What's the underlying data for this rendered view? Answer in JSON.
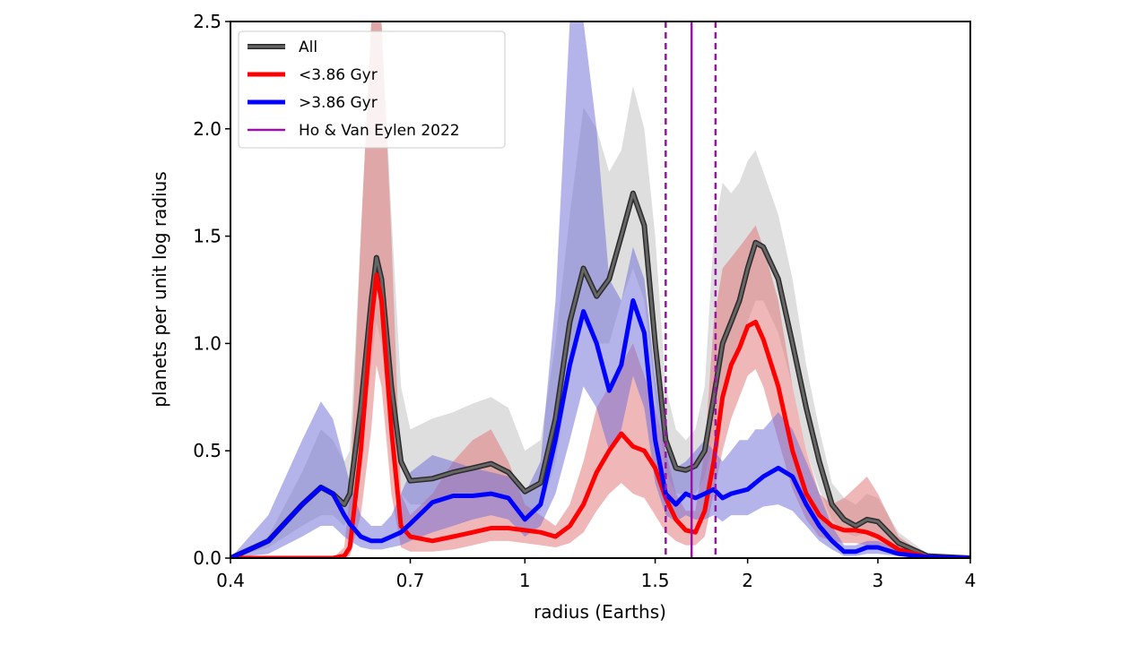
{
  "chart_data": {
    "type": "line",
    "xlabel": "radius (Earths)",
    "ylabel": "planets per unit log radius",
    "xscale": "log",
    "xlim": [
      0.4,
      4
    ],
    "ylim": [
      0,
      2.5
    ],
    "xticks": [
      0.4,
      0.7,
      1,
      1.5,
      2,
      3,
      4
    ],
    "yticks": [
      {
        "value": 0,
        "label": "0.0"
      },
      0.5,
      {
        "value": 1,
        "label": "1.0"
      },
      1.5,
      {
        "value": 2,
        "label": "2.0"
      },
      2.5
    ],
    "legend": "upper left",
    "x": [
      0.4,
      0.45,
      0.5,
      0.53,
      0.55,
      0.57,
      0.58,
      0.6,
      0.62,
      0.63,
      0.64,
      0.66,
      0.68,
      0.7,
      0.75,
      0.8,
      0.85,
      0.9,
      0.95,
      1.0,
      1.05,
      1.1,
      1.15,
      1.2,
      1.25,
      1.3,
      1.35,
      1.4,
      1.45,
      1.5,
      1.55,
      1.6,
      1.65,
      1.7,
      1.75,
      1.8,
      1.85,
      1.9,
      1.95,
      2.0,
      2.05,
      2.1,
      2.2,
      2.3,
      2.4,
      2.5,
      2.6,
      2.7,
      2.8,
      2.9,
      3.0,
      3.2,
      3.5,
      4.0
    ],
    "series": [
      {
        "name": "All",
        "color": "#454545",
        "band_color": "#c8c8c8",
        "values": [
          0,
          0.08,
          0.25,
          0.33,
          0.3,
          0.25,
          0.3,
          0.7,
          1.2,
          1.4,
          1.3,
          0.8,
          0.45,
          0.36,
          0.37,
          0.4,
          0.42,
          0.44,
          0.4,
          0.31,
          0.35,
          0.65,
          1.1,
          1.35,
          1.22,
          1.3,
          1.5,
          1.7,
          1.55,
          1.0,
          0.55,
          0.42,
          0.41,
          0.43,
          0.5,
          0.75,
          1.0,
          1.1,
          1.2,
          1.35,
          1.47,
          1.45,
          1.3,
          1.0,
          0.7,
          0.45,
          0.25,
          0.18,
          0.15,
          0.18,
          0.17,
          0.07,
          0.01,
          0
        ],
        "upper": [
          0,
          0.1,
          0.4,
          0.6,
          0.55,
          0.45,
          0.5,
          1.5,
          2.5,
          2.5,
          2.5,
          1.6,
          0.8,
          0.6,
          0.65,
          0.68,
          0.72,
          0.75,
          0.7,
          0.5,
          0.55,
          1.0,
          1.6,
          2.1,
          2.0,
          1.8,
          1.9,
          2.2,
          2.0,
          1.5,
          0.8,
          0.6,
          0.55,
          0.6,
          0.8,
          1.5,
          1.75,
          1.7,
          1.75,
          1.85,
          1.9,
          1.8,
          1.6,
          1.3,
          0.9,
          0.6,
          0.35,
          0.28,
          0.25,
          0.3,
          0.28,
          0.12,
          0.02,
          0
        ],
        "lower": [
          0,
          0.05,
          0.15,
          0.2,
          0.2,
          0.15,
          0.2,
          0.45,
          0.9,
          1.1,
          1.0,
          0.55,
          0.3,
          0.25,
          0.25,
          0.28,
          0.3,
          0.3,
          0.28,
          0.2,
          0.22,
          0.45,
          0.85,
          1.1,
          1.0,
          1.0,
          1.2,
          1.35,
          1.2,
          0.75,
          0.4,
          0.3,
          0.3,
          0.3,
          0.38,
          0.55,
          0.8,
          0.9,
          1.0,
          1.1,
          1.2,
          1.2,
          1.05,
          0.8,
          0.5,
          0.32,
          0.18,
          0.12,
          0.1,
          0.12,
          0.1,
          0.04,
          0.005,
          0
        ]
      },
      {
        "name": "<3.86 Gyr",
        "color": "#ff0000",
        "band_color": "#e07070",
        "values": [
          0,
          0,
          0,
          0,
          0,
          0.01,
          0.05,
          0.5,
          1.1,
          1.32,
          1.2,
          0.6,
          0.15,
          0.1,
          0.08,
          0.1,
          0.12,
          0.14,
          0.14,
          0.13,
          0.12,
          0.1,
          0.15,
          0.25,
          0.4,
          0.5,
          0.58,
          0.52,
          0.5,
          0.42,
          0.28,
          0.18,
          0.13,
          0.12,
          0.22,
          0.45,
          0.75,
          0.9,
          0.98,
          1.08,
          1.1,
          1.02,
          0.8,
          0.5,
          0.3,
          0.2,
          0.15,
          0.13,
          0.13,
          0.12,
          0.1,
          0.04,
          0.005,
          0
        ],
        "upper": [
          0,
          0,
          0,
          0,
          0,
          0.05,
          0.3,
          1.5,
          2.5,
          2.5,
          2.5,
          1.5,
          0.3,
          0.2,
          0.3,
          0.45,
          0.55,
          0.6,
          0.45,
          0.25,
          0.2,
          0.15,
          0.25,
          0.45,
          0.7,
          0.8,
          0.9,
          1.0,
          0.85,
          0.7,
          0.5,
          0.3,
          0.22,
          0.22,
          0.5,
          1.1,
          1.35,
          1.4,
          1.45,
          1.5,
          1.55,
          1.45,
          1.2,
          0.8,
          0.5,
          0.3,
          0.25,
          0.28,
          0.33,
          0.38,
          0.3,
          0.1,
          0.01,
          0
        ],
        "lower": [
          0,
          0,
          0,
          0,
          0,
          0,
          0.01,
          0.2,
          0.6,
          0.9,
          0.8,
          0.3,
          0.05,
          0.03,
          0.03,
          0.04,
          0.06,
          0.08,
          0.08,
          0.07,
          0.06,
          0.05,
          0.07,
          0.12,
          0.22,
          0.3,
          0.35,
          0.3,
          0.28,
          0.2,
          0.12,
          0.08,
          0.06,
          0.06,
          0.1,
          0.3,
          0.5,
          0.65,
          0.75,
          0.85,
          0.88,
          0.8,
          0.55,
          0.32,
          0.18,
          0.1,
          0.08,
          0.07,
          0.07,
          0.06,
          0.05,
          0.02,
          0,
          0
        ]
      },
      {
        "name": ">3.86 Gyr",
        "color": "#0000ff",
        "band_color": "#6a6ad8",
        "values": [
          0,
          0.08,
          0.25,
          0.33,
          0.3,
          0.2,
          0.16,
          0.1,
          0.08,
          0.08,
          0.08,
          0.1,
          0.12,
          0.16,
          0.26,
          0.29,
          0.29,
          0.3,
          0.28,
          0.18,
          0.25,
          0.55,
          0.9,
          1.15,
          1.0,
          0.78,
          0.9,
          1.2,
          1.05,
          0.55,
          0.3,
          0.25,
          0.3,
          0.28,
          0.3,
          0.32,
          0.28,
          0.3,
          0.31,
          0.32,
          0.35,
          0.38,
          0.42,
          0.38,
          0.25,
          0.15,
          0.08,
          0.03,
          0.03,
          0.05,
          0.05,
          0.02,
          0.005,
          0
        ],
        "upper": [
          0,
          0.2,
          0.55,
          0.73,
          0.65,
          0.45,
          0.35,
          0.2,
          0.15,
          0.15,
          0.15,
          0.2,
          0.3,
          0.4,
          0.48,
          0.45,
          0.42,
          0.4,
          0.38,
          0.3,
          0.45,
          1.2,
          2.5,
          2.5,
          2.0,
          1.3,
          1.2,
          1.45,
          1.3,
          0.85,
          0.5,
          0.42,
          0.45,
          0.5,
          0.55,
          0.5,
          0.45,
          0.5,
          0.55,
          0.55,
          0.6,
          0.6,
          0.68,
          0.6,
          0.45,
          0.3,
          0.15,
          0.06,
          0.06,
          0.08,
          0.08,
          0.04,
          0.01,
          0
        ],
        "lower": [
          0,
          0.02,
          0.1,
          0.15,
          0.15,
          0.1,
          0.08,
          0.05,
          0.04,
          0.04,
          0.04,
          0.05,
          0.06,
          0.08,
          0.12,
          0.15,
          0.18,
          0.2,
          0.18,
          0.1,
          0.15,
          0.3,
          0.55,
          0.8,
          0.7,
          0.5,
          0.6,
          0.85,
          0.7,
          0.35,
          0.2,
          0.17,
          0.2,
          0.18,
          0.18,
          0.2,
          0.17,
          0.2,
          0.2,
          0.2,
          0.22,
          0.24,
          0.25,
          0.22,
          0.15,
          0.08,
          0.04,
          0.01,
          0.01,
          0.02,
          0.02,
          0.01,
          0,
          0
        ]
      }
    ],
    "reference": {
      "name": "Ho & Van Eylen 2022",
      "color": "#9a12a8",
      "value": 1.68,
      "lower": 1.55,
      "upper": 1.81
    }
  }
}
